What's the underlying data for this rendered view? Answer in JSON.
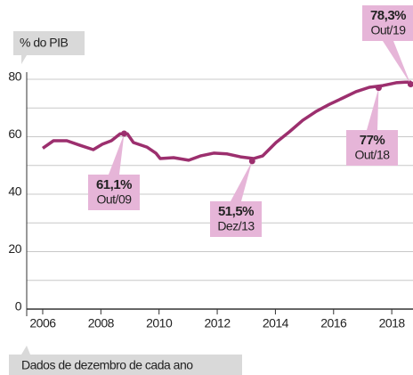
{
  "chart_data": {
    "type": "line",
    "y_axis_label": "% do PIB",
    "footnote": "Dados de dezembro de cada ano",
    "xlim": [
      2005.45,
      2018.73
    ],
    "xticks": [
      2006,
      2008,
      2010,
      2012,
      2014,
      2016,
      2018
    ],
    "ylim": [
      0,
      80
    ],
    "yticks": [
      0,
      20,
      40,
      60,
      80
    ],
    "minor_grid_yticks": [
      10,
      30,
      50,
      70
    ],
    "grid": true,
    "series": [
      {
        "color": "#9c2f6e",
        "x": [
          2006,
          2006.37,
          2006.83,
          2007.29,
          2007.74,
          2008.05,
          2008.36,
          2008.66,
          2008.91,
          2009.12,
          2009.58,
          2009.89,
          2010.04,
          2010.5,
          2011.02,
          2011.42,
          2011.88,
          2012.34,
          2012.8,
          2013.25,
          2013.56,
          2014.02,
          2014.48,
          2014.94,
          2015.4,
          2015.86,
          2016.32,
          2016.77,
          2017.23,
          2017.69,
          2018.15,
          2018.46,
          2018.67
        ],
        "values": [
          56,
          58.6,
          58.6,
          57,
          55.5,
          57.4,
          58.6,
          61,
          61,
          58,
          56.4,
          54.3,
          52.4,
          52.7,
          51.8,
          53.3,
          54.3,
          54,
          53,
          52.4,
          53.3,
          58,
          61.7,
          65.7,
          68.8,
          71.3,
          73.5,
          75.7,
          77.2,
          77.8,
          78.8,
          79,
          79
        ]
      }
    ],
    "annotations": [
      {
        "x": 2008.8,
        "value": 61.1,
        "label": "61,1%",
        "date": "Out/09"
      },
      {
        "x": 2013.2,
        "value": 51.5,
        "label": "51,5%",
        "date": "Dez/13"
      },
      {
        "x": 2017.55,
        "value": 77,
        "label": "77%",
        "date": "Out/18"
      },
      {
        "x": 2018.65,
        "value": 78.3,
        "label": "78,3%",
        "date": "Out/19"
      }
    ]
  }
}
